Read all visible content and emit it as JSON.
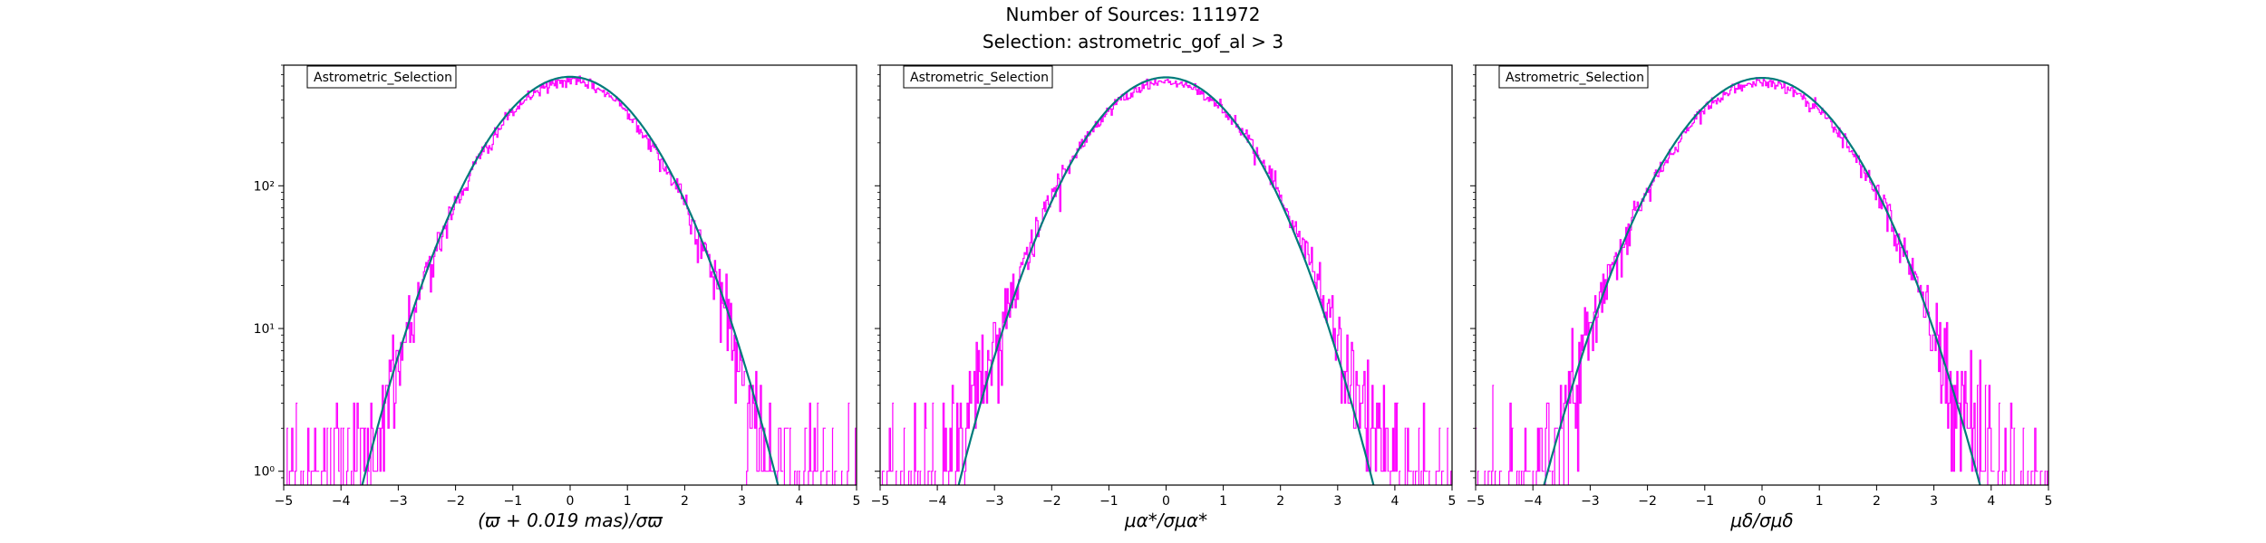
{
  "figure": {
    "title_line1": "Number of Sources: 111972",
    "title_line2": "Selection: astrometric_gof_al > 3"
  },
  "colors": {
    "histogram": "#ff00ff",
    "model": "#007b7b",
    "axes": "#000000"
  },
  "chart_data": [
    {
      "type": "line",
      "legend": "Astrometric_Selection",
      "legend_placement": "top-left",
      "xlabel": "(ϖ + 0.019 mas)/σϖ",
      "ylabel": "",
      "xlim": [
        -5,
        5
      ],
      "yscale": "log",
      "ylim": [
        0.8,
        700
      ],
      "grid": false,
      "x_ticks": [
        -5,
        -4,
        -3,
        -2,
        -1,
        0,
        1,
        2,
        3,
        4,
        5
      ],
      "y_ticks": [
        1,
        10,
        100
      ],
      "y_tick_labels": [
        "10⁰",
        "10¹",
        "10²"
      ],
      "series": [
        {
          "kind": "histogram",
          "mu": 0.0,
          "sigma": 1.0,
          "peak": 540,
          "x_range": [
            -5,
            5
          ],
          "step": 0.02
        },
        {
          "kind": "model",
          "mu": 0.0,
          "sigma": 1.0,
          "peak": 580,
          "x_range": [
            -3.95,
            3.95
          ]
        }
      ]
    },
    {
      "type": "line",
      "legend": "Astrometric_Selection",
      "legend_placement": "top-left",
      "xlabel": "μα*/σμα*",
      "ylabel": "",
      "xlim": [
        -5,
        5
      ],
      "yscale": "log",
      "ylim": [
        0.8,
        700
      ],
      "grid": false,
      "x_ticks": [
        -5,
        -4,
        -3,
        -2,
        -1,
        0,
        1,
        2,
        3,
        4,
        5
      ],
      "y_ticks": [
        1,
        10,
        100
      ],
      "y_tick_labels": [
        "10⁰",
        "10¹",
        "10²"
      ],
      "series": [
        {
          "kind": "histogram",
          "mu": 0.0,
          "sigma": 1.04,
          "peak": 535,
          "x_range": [
            -5,
            5
          ],
          "step": 0.02
        },
        {
          "kind": "model",
          "mu": 0.0,
          "sigma": 1.0,
          "peak": 575,
          "x_range": [
            -4.15,
            4.15
          ]
        }
      ]
    },
    {
      "type": "line",
      "legend": "Astrometric_Selection",
      "legend_placement": "top-left",
      "xlabel": "μδ/σμδ",
      "ylabel": "",
      "xlim": [
        -5,
        5
      ],
      "yscale": "log",
      "ylim": [
        0.8,
        700
      ],
      "grid": false,
      "x_ticks": [
        -5,
        -4,
        -3,
        -2,
        -1,
        0,
        1,
        2,
        3,
        4,
        5
      ],
      "y_ticks": [
        1,
        10,
        100
      ],
      "y_tick_labels": [
        "10⁰",
        "10¹",
        "10²"
      ],
      "series": [
        {
          "kind": "histogram",
          "mu": 0.0,
          "sigma": 1.06,
          "peak": 530,
          "x_range": [
            -5,
            5
          ],
          "step": 0.02
        },
        {
          "kind": "model",
          "mu": 0.0,
          "sigma": 1.05,
          "peak": 570,
          "x_range": [
            -4.3,
            4.3
          ]
        }
      ]
    }
  ]
}
